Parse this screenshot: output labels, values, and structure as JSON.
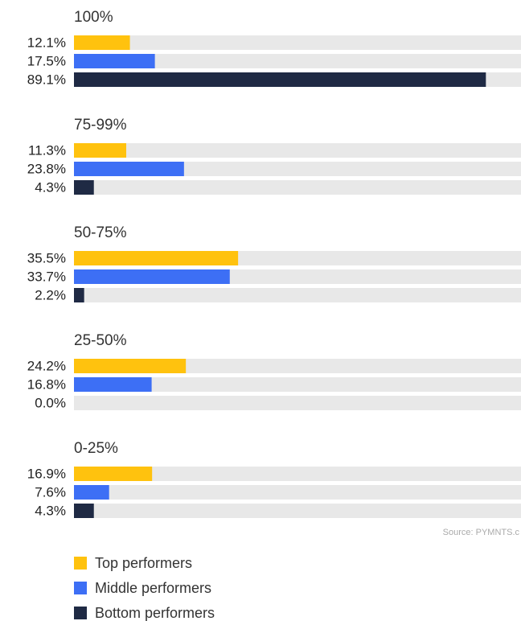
{
  "chart_data": {
    "type": "grouped-bar-horizontal",
    "categories": [
      "100%",
      "75-99%",
      "50-75%",
      "25-50%",
      "0-25%"
    ],
    "series": [
      {
        "name": "Top performers",
        "color": "#ffc20e",
        "values": [
          12.1,
          11.3,
          35.5,
          24.2,
          16.9
        ],
        "value_labels": [
          "12.1%",
          "11.3%",
          "35.5%",
          "24.2%",
          "16.9%"
        ]
      },
      {
        "name": "Middle performers",
        "color": "#3d6ff5",
        "values": [
          17.5,
          23.8,
          33.7,
          16.8,
          7.6
        ],
        "value_labels": [
          "17.5%",
          "23.8%",
          "33.7%",
          "16.8%",
          "7.6%"
        ]
      },
      {
        "name": "Bottom performers",
        "color": "#1f2a44",
        "values": [
          89.1,
          4.3,
          2.2,
          0.0,
          4.3
        ],
        "value_labels": [
          "89.1%",
          "4.3%",
          "2.2%",
          "0.0%",
          "4.3%"
        ]
      }
    ],
    "xlim": [
      0,
      100
    ],
    "source": "Source: PYMNTS.c"
  }
}
